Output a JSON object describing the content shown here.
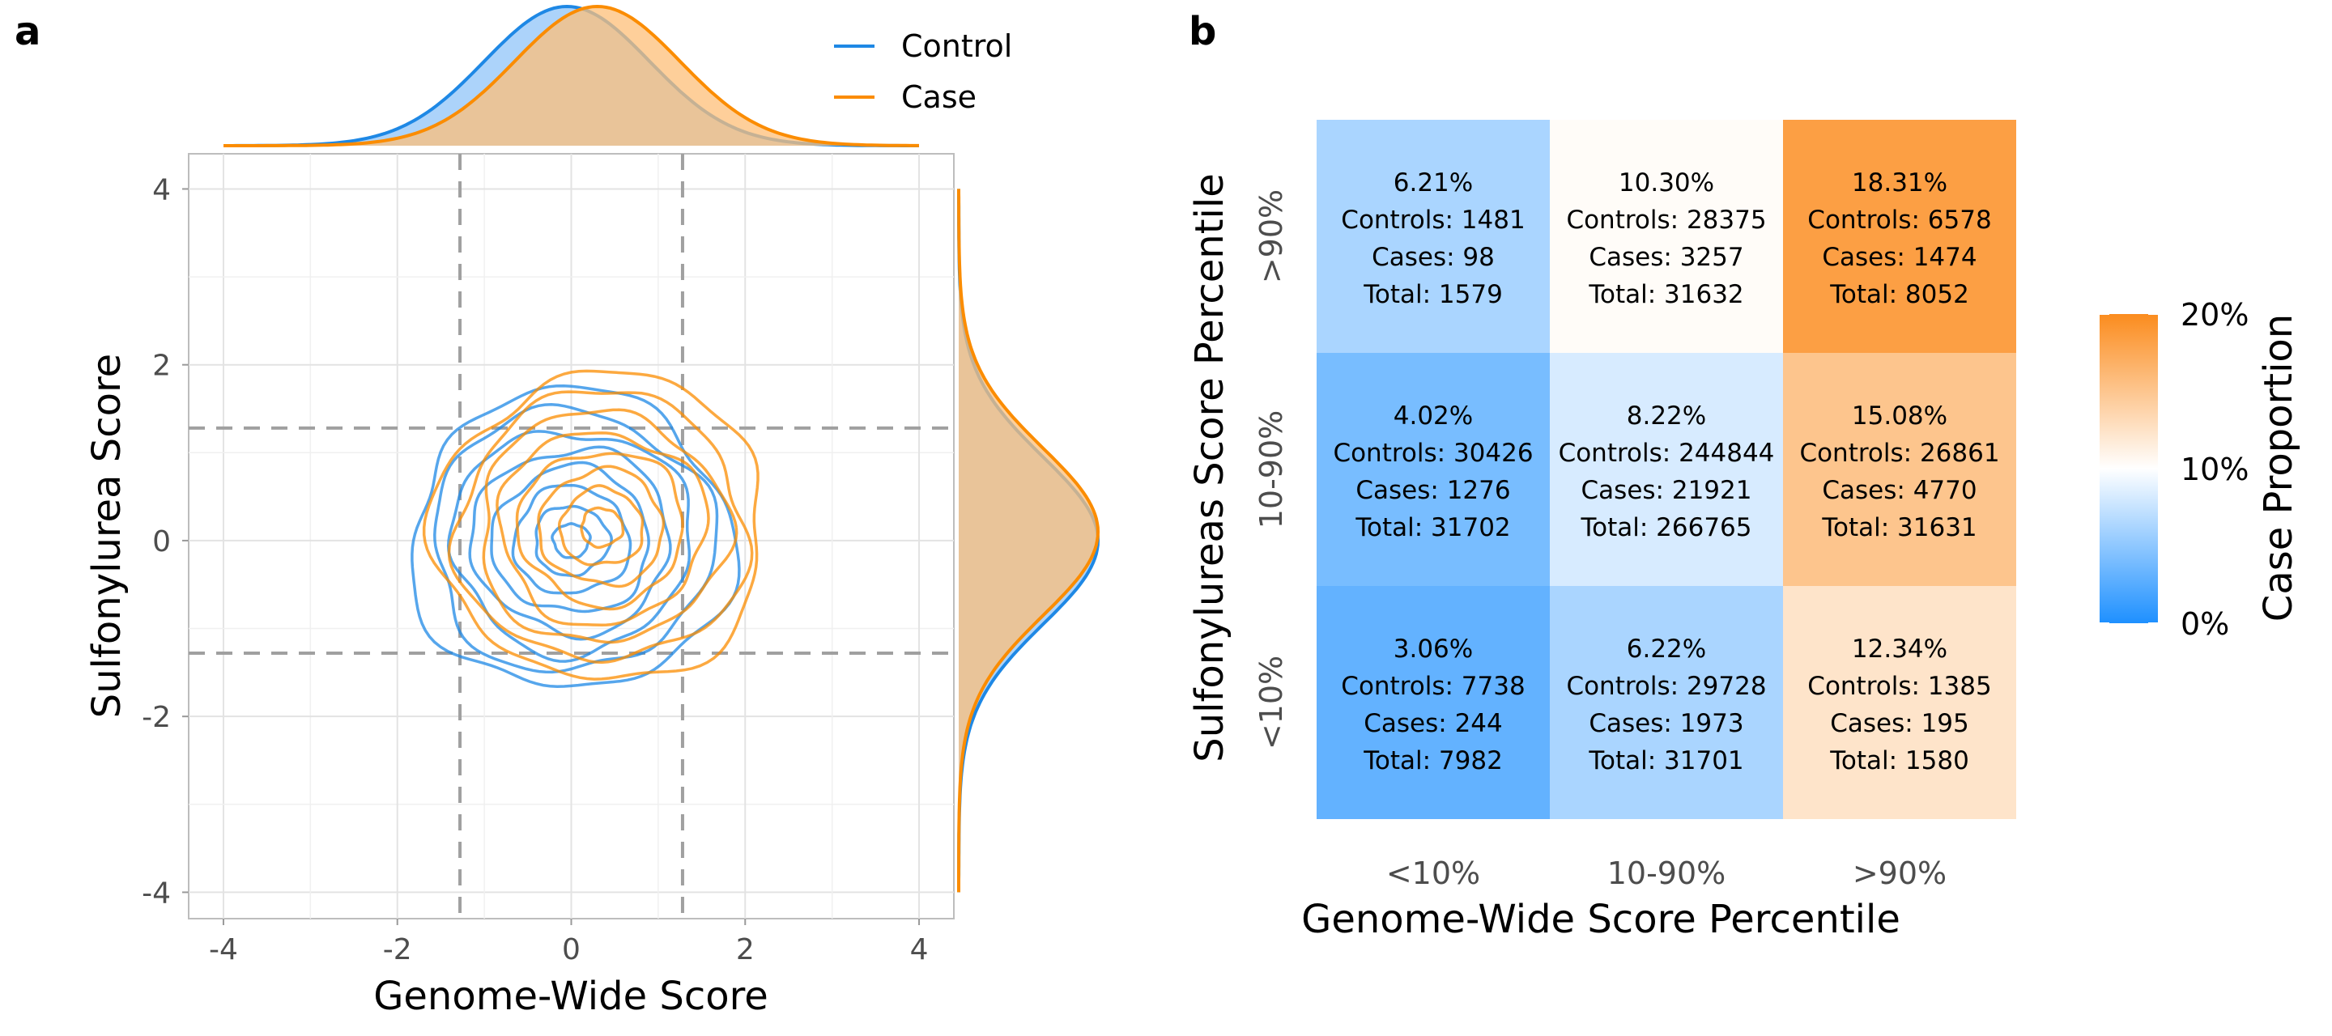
{
  "chart_data": [
    {
      "type": "scatter",
      "panel_label": "a",
      "xlabel": "Genome-Wide Score",
      "ylabel": "Sulfonylurea Score",
      "xlim": [
        -4.4,
        4.4
      ],
      "ylim": [
        -4.3,
        4.4
      ],
      "xticks": [
        -4,
        -2,
        0,
        2,
        4
      ],
      "yticks": [
        -4,
        -2,
        0,
        2,
        4
      ],
      "grid": true,
      "legend_position": "top-right",
      "reference_lines": {
        "x": [
          -1.28,
          1.28
        ],
        "y": [
          -1.28,
          1.28
        ]
      },
      "series": [
        {
          "name": "Control",
          "color": "#1e88e5",
          "fill": "#90c4f8",
          "center": [
            0.0,
            0.0
          ],
          "sd": [
            0.95,
            0.95
          ],
          "marginal_mean_x": -0.05,
          "marginal_mean_y": 0.0,
          "contour_levels": [
            0.22,
            0.45,
            0.7,
            0.95,
            1.2,
            1.45,
            1.7,
            1.95
          ]
        },
        {
          "name": "Case",
          "color": "#fb8c00",
          "fill": "#fdbf78",
          "center": [
            0.35,
            0.15
          ],
          "sd": [
            0.95,
            0.95
          ],
          "marginal_mean_x": 0.3,
          "marginal_mean_y": 0.1,
          "contour_levels": [
            0.25,
            0.5,
            0.75,
            1.0,
            1.25,
            1.5,
            1.75,
            2.0
          ]
        }
      ]
    },
    {
      "type": "heatmap",
      "panel_label": "b",
      "xlabel": "Genome-Wide Score Percentile",
      "ylabel": "Sulfonylureas Score Percentile",
      "x_categories": [
        "<10%",
        "10-90%",
        ">90%"
      ],
      "y_categories": [
        ">90%",
        "10-90%",
        "<10%"
      ],
      "colorbar": {
        "title": "Case Proportion",
        "ticks": [
          "20%",
          "10%",
          "0%"
        ],
        "min": 0,
        "mid": 10,
        "max": 20,
        "low_color": "#1e90ff",
        "mid_color": "#ffffff",
        "high_color": "#fb8c1e"
      },
      "cells": [
        [
          {
            "pct": "6.21%",
            "value": 6.21,
            "controls": "Controls: 1481",
            "cases": "Cases: 98",
            "total": "Total: 1579"
          },
          {
            "pct": "10.30%",
            "value": 10.3,
            "controls": "Controls: 28375",
            "cases": "Cases: 3257",
            "total": "Total: 31632"
          },
          {
            "pct": "18.31%",
            "value": 18.31,
            "controls": "Controls: 6578",
            "cases": "Cases: 1474",
            "total": "Total: 8052"
          }
        ],
        [
          {
            "pct": "4.02%",
            "value": 4.02,
            "controls": "Controls: 30426",
            "cases": "Cases: 1276",
            "total": "Total: 31702"
          },
          {
            "pct": "8.22%",
            "value": 8.22,
            "controls": "Controls: 244844",
            "cases": "Cases: 21921",
            "total": "Total: 266765"
          },
          {
            "pct": "15.08%",
            "value": 15.08,
            "controls": "Controls: 26861",
            "cases": "Cases: 4770",
            "total": "Total: 31631"
          }
        ],
        [
          {
            "pct": "3.06%",
            "value": 3.06,
            "controls": "Controls: 7738",
            "cases": "Cases: 244",
            "total": "Total: 7982"
          },
          {
            "pct": "6.22%",
            "value": 6.22,
            "controls": "Controls: 29728",
            "cases": "Cases: 1973",
            "total": "Total: 31701"
          },
          {
            "pct": "12.34%",
            "value": 12.34,
            "controls": "Controls: 1385",
            "cases": "Cases: 195",
            "total": "Total: 1580"
          }
        ]
      ]
    }
  ]
}
